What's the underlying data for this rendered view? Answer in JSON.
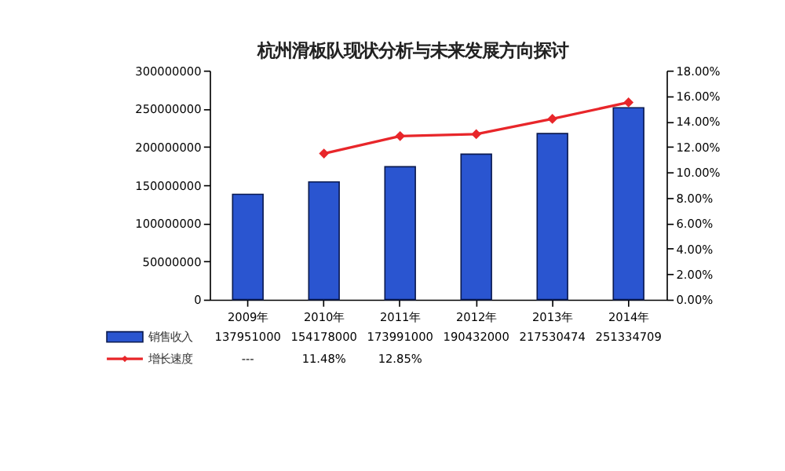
{
  "chart_data": {
    "type": "bar",
    "title": "杭州滑板队现状分析与未来发展方向探讨",
    "categories": [
      "2009年",
      "2010年",
      "2011年",
      "2012年",
      "2013年",
      "2014年"
    ],
    "ylim": [
      0,
      300000000
    ],
    "yticks": [
      0,
      50000000,
      100000000,
      150000000,
      200000000,
      250000000,
      300000000
    ],
    "y2lim": [
      0,
      18
    ],
    "y2ticks": [
      {
        "value": 0,
        "label": "0.00%"
      },
      {
        "value": 2,
        "label": "2.00%"
      },
      {
        "value": 4,
        "label": "4.00%"
      },
      {
        "value": 6,
        "label": "6.00%"
      },
      {
        "value": 8,
        "label": "8.00%"
      },
      {
        "value": 10,
        "label": "10.00%"
      },
      {
        "value": 12,
        "label": "12.00%"
      },
      {
        "value": 14,
        "label": "14.00%"
      },
      {
        "value": 16,
        "label": "16.00%"
      },
      {
        "value": 18,
        "label": "18.00%"
      }
    ],
    "legend": "bottom",
    "series": [
      {
        "name": "销售收入",
        "color": "#2a55d0",
        "values": [
          137951000,
          154178000,
          173991000,
          190432000,
          217530474,
          251334709
        ],
        "value_labels": [
          "137951000",
          "154178000",
          "173991000",
          "190432000",
          "217530474",
          "251334709"
        ]
      },
      {
        "name": "增长速度",
        "type": "line",
        "axis": "y2",
        "marker": "diamond",
        "color": "#e8262a",
        "values": [
          null,
          11.48,
          12.85,
          13.0,
          14.2,
          15.5
        ],
        "value_labels": [
          "---",
          "11.48%",
          "12.85%",
          null,
          null,
          null
        ]
      }
    ]
  }
}
